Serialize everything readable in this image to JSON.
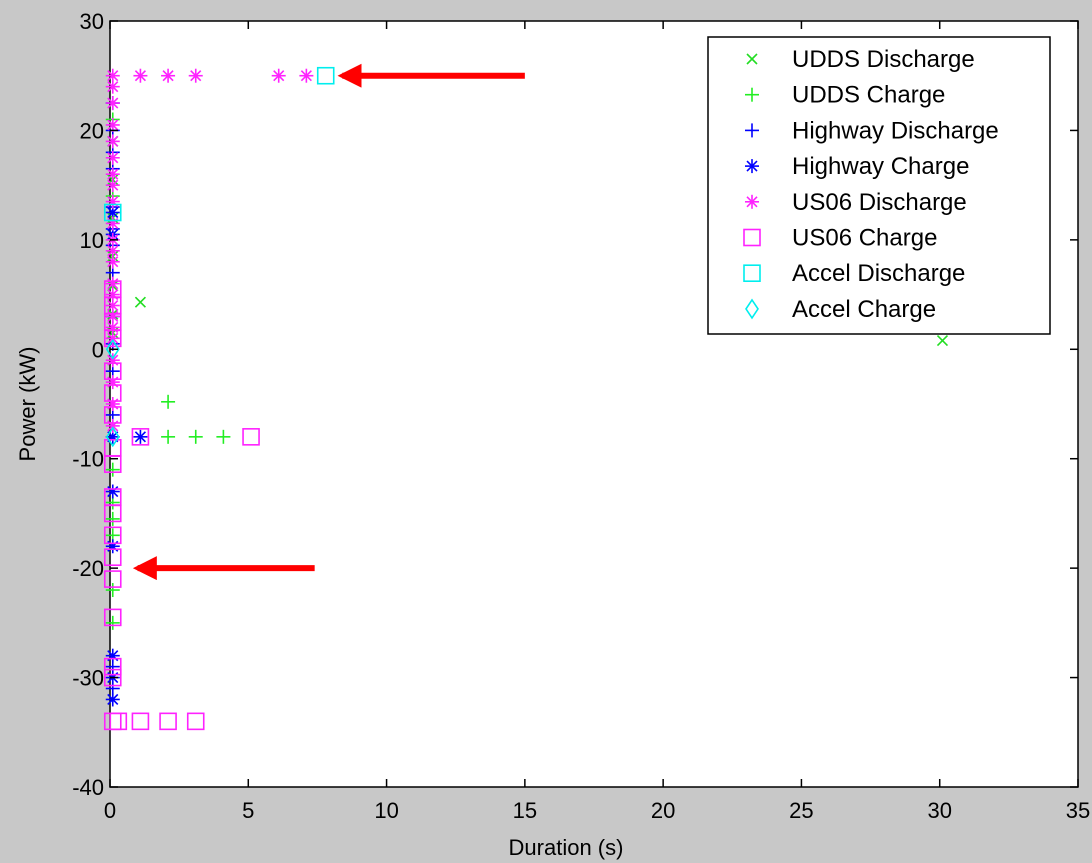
{
  "chart_data": {
    "type": "scatter",
    "xlabel": "Duration (s)",
    "ylabel": "Power (kW)",
    "xlim": [
      0,
      35
    ],
    "ylim": [
      -40,
      30
    ],
    "xticks": [
      0,
      5,
      10,
      15,
      20,
      25,
      30,
      35
    ],
    "yticks": [
      -40,
      -30,
      -20,
      -10,
      0,
      10,
      20,
      30
    ],
    "grid": false,
    "legend_position": "top-right",
    "series": [
      {
        "name": "UDDS Discharge",
        "marker": "x",
        "color": "#22dd22",
        "points": [
          [
            1.1,
            4.3
          ],
          [
            30.1,
            0.8
          ],
          [
            0.1,
            1.5
          ],
          [
            0.1,
            3.2
          ],
          [
            0.1,
            5.8
          ],
          [
            0.1,
            8.5
          ],
          [
            0.1,
            12.0
          ],
          [
            0.1,
            15.5
          ],
          [
            0.1,
            19.0
          ]
        ]
      },
      {
        "name": "UDDS Charge",
        "marker": "plus",
        "color": "#22ee22",
        "points": [
          [
            2.1,
            -4.8
          ],
          [
            2.1,
            -8.0
          ],
          [
            3.1,
            -8.0
          ],
          [
            4.1,
            -8.0
          ],
          [
            0.1,
            -11.0
          ],
          [
            0.1,
            -14.0
          ],
          [
            0.1,
            -15.5
          ],
          [
            0.1,
            -17.0
          ],
          [
            0.1,
            -22.0
          ],
          [
            0.1,
            -25.0
          ],
          [
            0.1,
            21.0
          ],
          [
            0.1,
            14.0
          ]
        ]
      },
      {
        "name": "Highway Discharge",
        "marker": "plus",
        "color": "#0000ff",
        "points": [
          [
            0.1,
            22.5
          ],
          [
            0.1,
            20.0
          ],
          [
            0.1,
            18.0
          ],
          [
            0.1,
            16.5
          ],
          [
            0.1,
            13.0
          ],
          [
            0.1,
            11.0
          ],
          [
            0.1,
            9.5
          ],
          [
            0.1,
            7.0
          ],
          [
            0.1,
            3.0
          ],
          [
            0.1,
            0.5
          ],
          [
            0.1,
            -2.0
          ],
          [
            0.1,
            -6.0
          ],
          [
            0.1,
            -31.0
          ],
          [
            0.1,
            -29.0
          ]
        ]
      },
      {
        "name": "Highway Charge",
        "marker": "asterisk",
        "color": "#0000ff",
        "points": [
          [
            1.1,
            -8.0
          ],
          [
            0.1,
            -8.0
          ],
          [
            0.1,
            -13.0
          ],
          [
            0.1,
            -18.0
          ],
          [
            0.1,
            -28.0
          ],
          [
            0.1,
            -30.0
          ],
          [
            0.1,
            -32.0
          ],
          [
            0.1,
            10.5
          ],
          [
            0.1,
            12.5
          ]
        ]
      },
      {
        "name": "US06 Discharge",
        "marker": "asterisk",
        "color": "#ff22ff",
        "points": [
          [
            0.1,
            25.0
          ],
          [
            1.1,
            25.0
          ],
          [
            2.1,
            25.0
          ],
          [
            3.1,
            25.0
          ],
          [
            6.1,
            25.0
          ],
          [
            7.1,
            25.0
          ],
          [
            0.1,
            24.0
          ],
          [
            0.1,
            22.5
          ],
          [
            0.1,
            20.5
          ],
          [
            0.1,
            19.0
          ],
          [
            0.1,
            17.5
          ],
          [
            0.1,
            16.0
          ],
          [
            0.1,
            15.0
          ],
          [
            0.1,
            13.5
          ],
          [
            0.1,
            11.5
          ],
          [
            0.1,
            10.0
          ],
          [
            0.1,
            9.0
          ],
          [
            0.1,
            8.0
          ],
          [
            0.1,
            6.0
          ],
          [
            0.1,
            5.0
          ],
          [
            0.1,
            4.0
          ],
          [
            0.1,
            3.0
          ],
          [
            0.1,
            2.0
          ],
          [
            0.1,
            1.0
          ],
          [
            0.1,
            -1.0
          ],
          [
            0.1,
            -3.0
          ],
          [
            0.1,
            -5.0
          ],
          [
            0.1,
            -7.0
          ]
        ]
      },
      {
        "name": "US06 Charge",
        "marker": "square",
        "color": "#ff22ff",
        "points": [
          [
            1.1,
            -8.0
          ],
          [
            5.1,
            -8.0
          ],
          [
            0.1,
            -34.0
          ],
          [
            0.3,
            -34.0
          ],
          [
            1.1,
            -34.0
          ],
          [
            2.1,
            -34.0
          ],
          [
            3.1,
            -34.0
          ],
          [
            0.1,
            -30.0
          ],
          [
            0.1,
            -29.0
          ],
          [
            0.1,
            -24.5
          ],
          [
            0.1,
            -21.0
          ],
          [
            0.1,
            -19.0
          ],
          [
            0.1,
            -17.0
          ],
          [
            0.1,
            -15.0
          ],
          [
            0.1,
            -13.5
          ],
          [
            0.1,
            -10.5
          ],
          [
            0.1,
            -9.0
          ],
          [
            0.1,
            -6.0
          ],
          [
            0.1,
            -4.0
          ],
          [
            0.1,
            -2.0
          ],
          [
            0.1,
            1.0
          ],
          [
            0.1,
            2.5
          ],
          [
            0.1,
            4.0
          ],
          [
            0.1,
            5.5
          ]
        ]
      },
      {
        "name": "Accel Discharge",
        "marker": "square",
        "color": "#00eeee",
        "points": [
          [
            7.8,
            25.0
          ],
          [
            0.1,
            12.5
          ]
        ]
      },
      {
        "name": "Accel Charge",
        "marker": "diamond",
        "color": "#00eeee",
        "points": [
          [
            0.1,
            0.0
          ],
          [
            0.1,
            -8.0
          ]
        ]
      }
    ],
    "annotations": [
      {
        "type": "arrow",
        "color": "#ff0000",
        "from": [
          15.0,
          25.0
        ],
        "to": [
          8.4,
          25.0
        ]
      },
      {
        "type": "arrow",
        "color": "#ff0000",
        "from": [
          7.4,
          -20.0
        ],
        "to": [
          1.0,
          -20.0
        ]
      }
    ]
  }
}
